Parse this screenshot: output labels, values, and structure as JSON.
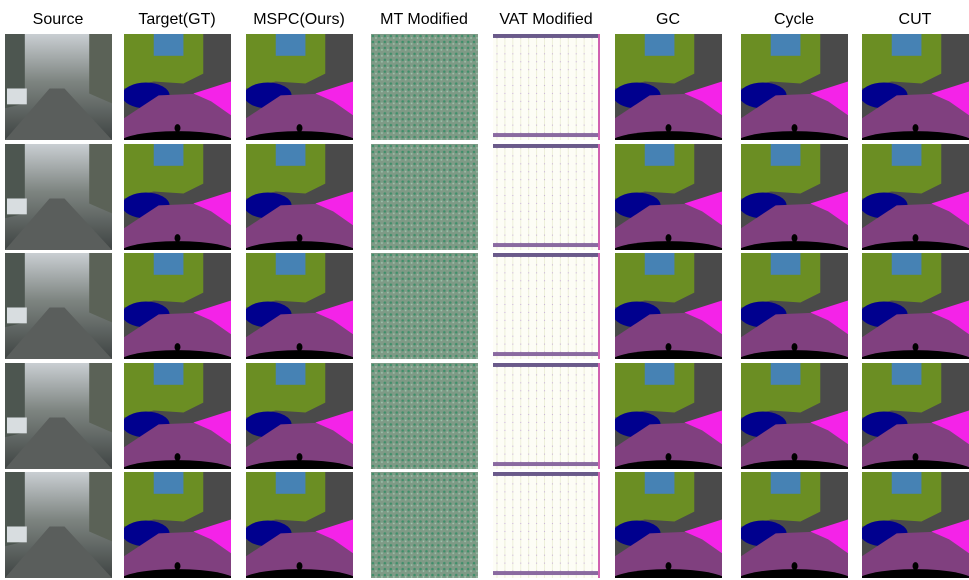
{
  "columns": [
    "Source",
    "Target(GT)",
    "MSPC(Ours)",
    "MT Modified",
    "VAT Modified",
    "GC",
    "Cycle",
    "CUT"
  ]
}
